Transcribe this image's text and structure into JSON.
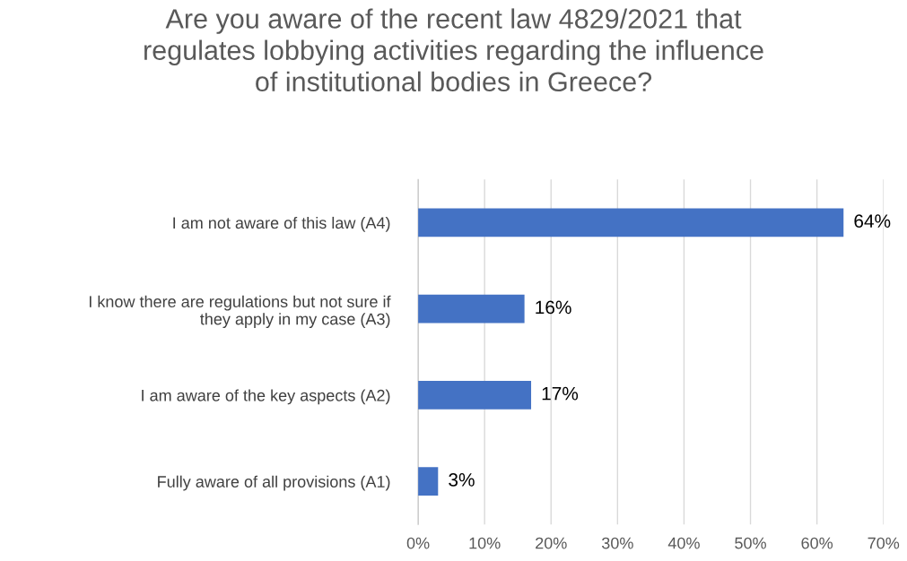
{
  "chart_data": {
    "type": "bar",
    "orientation": "horizontal",
    "title": "Are you aware of the recent law 4829/2021 that\nregulates lobbying activities regarding the influence\nof institutional bodies in Greece?",
    "categories": [
      "I am not aware of this law (A4)",
      "I know there are regulations but not sure if\nthey apply in my case (A3)",
      "I am aware of the key aspects (A2)",
      "Fully aware of all provisions (A1)"
    ],
    "values": [
      64,
      16,
      17,
      3
    ],
    "value_labels": [
      "64%",
      "16%",
      "17%",
      "3%"
    ],
    "color": "#4472c4",
    "xlim": [
      0,
      70
    ],
    "xticks": [
      {
        "value": 0,
        "label": "0%"
      },
      {
        "value": 10,
        "label": "10%"
      },
      {
        "value": 20,
        "label": "20%"
      },
      {
        "value": 30,
        "label": "30%"
      },
      {
        "value": 40,
        "label": "40%"
      },
      {
        "value": 50,
        "label": "50%"
      },
      {
        "value": 60,
        "label": "60%"
      },
      {
        "value": 70,
        "label": "70%"
      }
    ],
    "grid": "x"
  }
}
